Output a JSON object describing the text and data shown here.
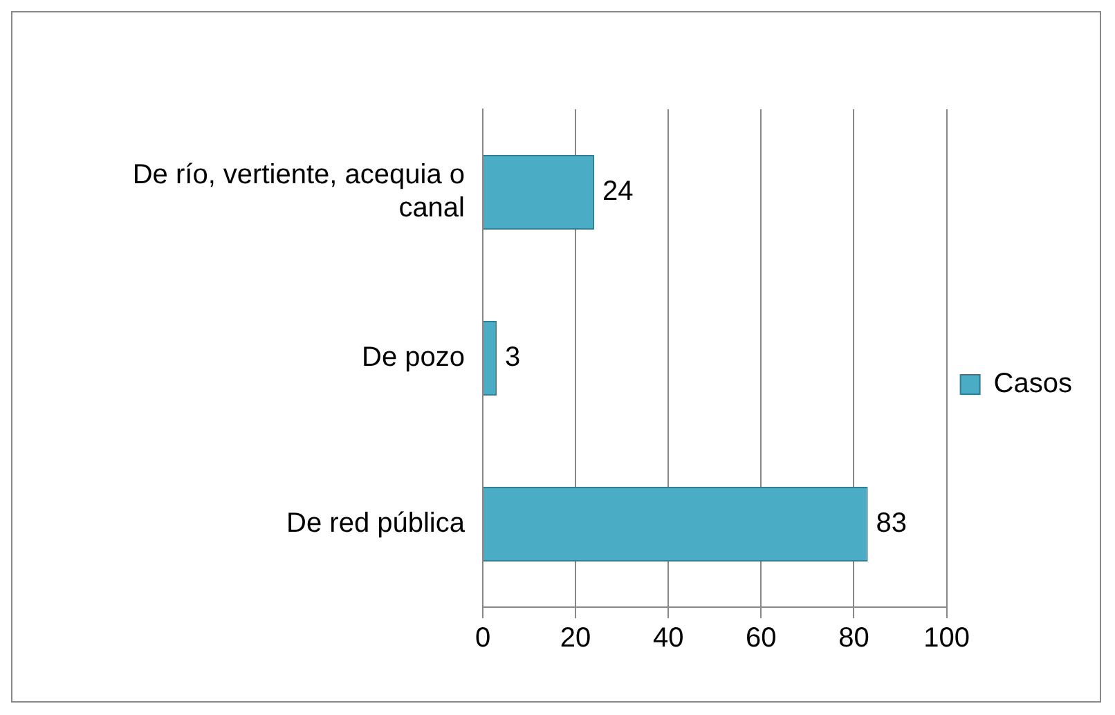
{
  "chart_data": {
    "type": "bar",
    "orientation": "horizontal",
    "categories": [
      "De río, vertiente, acequia o canal",
      "De pozo",
      "De red pública"
    ],
    "series": [
      {
        "name": "Casos",
        "color": "#4bacc6",
        "values": [
          24,
          3,
          83
        ]
      }
    ],
    "xlim": [
      0,
      100
    ],
    "xticks": [
      0,
      20,
      40,
      60,
      80,
      100
    ],
    "grid": "x",
    "legend": "right",
    "data_labels": true
  }
}
